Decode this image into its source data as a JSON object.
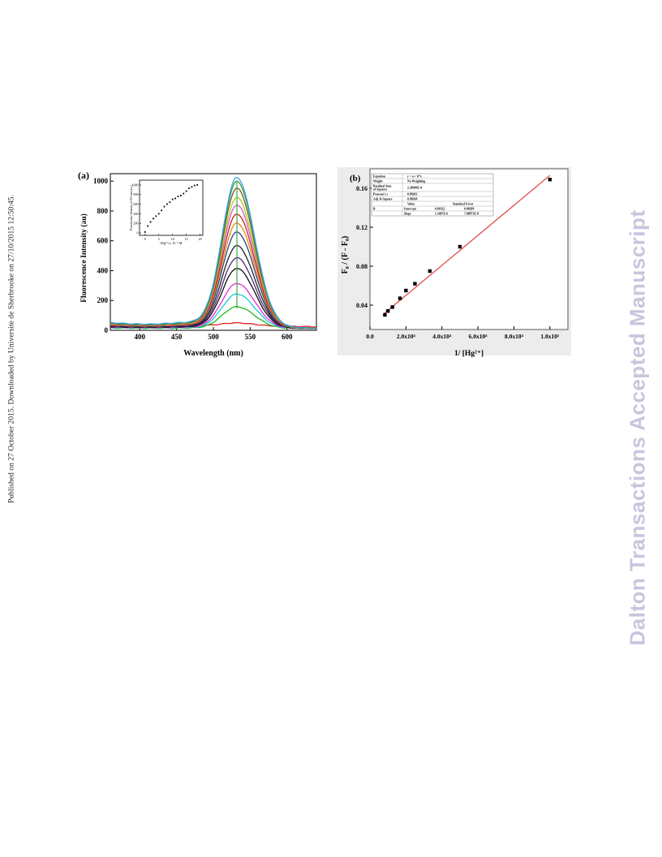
{
  "side_text_left": "Published on 27 October 2015. Downloaded by Universite de Sherbrooke on 27/10/2015 12:50:45.",
  "side_text_right": "Dalton Transactions Accepted Manuscript",
  "chart_data": [
    {
      "type": "line",
      "panel_label": "(a)",
      "xlabel": "Wavelength (nm)",
      "ylabel": "Fluorescence Intensity (au)",
      "xlim": [
        360,
        640
      ],
      "ylim": [
        0,
        1050
      ],
      "xticks": [
        400,
        450,
        500,
        550,
        600
      ],
      "yticks": [
        0,
        200,
        400,
        600,
        800,
        1000
      ],
      "peak_wavelength": 532,
      "peak_width_left": 20,
      "peak_width_right": 24,
      "series_peaks": [
        20,
        145,
        230,
        300,
        400,
        470,
        550,
        640,
        700,
        760,
        820,
        870,
        930,
        975,
        1000
      ],
      "series_colors": [
        "#e02020",
        "#21b821",
        "#18c8d8",
        "#e030d0",
        "#101010",
        "#502878",
        "#202020",
        "#284488",
        "#e08a18",
        "#c81e1e",
        "#d060c0",
        "#a0d020",
        "#7a5020",
        "#30a040",
        "#3aa0e0"
      ],
      "inset": {
        "type": "scatter",
        "xlabel": "[Hg²⁺] x 10⁻⁶ M",
        "ylabel": "Fluorescence Intensity at 530 nm (a.u.)",
        "xlim": [
          -2,
          21
        ],
        "ylim": [
          -50,
          1100
        ],
        "xticks": [
          0,
          5,
          10,
          15,
          20
        ],
        "yticks": [
          0,
          200,
          400,
          600,
          800,
          1000
        ],
        "x": [
          0,
          1,
          2,
          3,
          4,
          5,
          6,
          7,
          8,
          9,
          10,
          11,
          12,
          13,
          14,
          15,
          16,
          17,
          18,
          19
        ],
        "y": [
          20,
          145,
          230,
          300,
          350,
          400,
          470,
          550,
          600,
          640,
          700,
          720,
          760,
          780,
          820,
          870,
          930,
          960,
          990,
          1000
        ]
      }
    },
    {
      "type": "scatter",
      "panel_label": "(b)",
      "xlabel": "1/ [Hg²⁺]",
      "ylabel": "F₀ / (F - F₀)",
      "xlim": [
        0,
        110000
      ],
      "ylim": [
        0.015,
        0.18
      ],
      "xticks": [
        0,
        20000,
        40000,
        60000,
        80000,
        100000
      ],
      "xtick_labels": [
        "0.0",
        "2.0x10⁴",
        "4.0x10⁴",
        "6.0x10⁴",
        "8.0x10⁴",
        "1.0x10⁵"
      ],
      "yticks": [
        0.04,
        0.08,
        0.12,
        0.16
      ],
      "ytick_labels": [
        "0.04",
        "0.08",
        "0.12",
        "0.16"
      ],
      "x": [
        8300,
        10000,
        12500,
        16700,
        20000,
        25000,
        33300,
        50000,
        100000
      ],
      "y": [
        0.03,
        0.034,
        0.038,
        0.047,
        0.055,
        0.062,
        0.075,
        0.1,
        0.169
      ],
      "fit": {
        "intercept": 0.01922,
        "slope": 1.5407e-06,
        "x_start": 8000,
        "x_end": 100000
      },
      "fit_table": {
        "rows": [
          [
            "Equation",
            "y = a + b*x",
            ""
          ],
          [
            "Weight",
            "No Weighting",
            ""
          ],
          [
            "Residual Sum of Squares",
            "2.26949E-4",
            ""
          ],
          [
            "Pearson's r",
            "0.99203",
            ""
          ],
          [
            "Adj. R-Square",
            "0.98368",
            ""
          ],
          [
            "",
            "Value",
            "Standard Error"
          ],
          [
            "B",
            "Intercept",
            "0.01922",
            "0.00209"
          ],
          [
            "",
            "Slope",
            "1.5407E-6",
            "7.00873E-8"
          ]
        ]
      }
    }
  ]
}
